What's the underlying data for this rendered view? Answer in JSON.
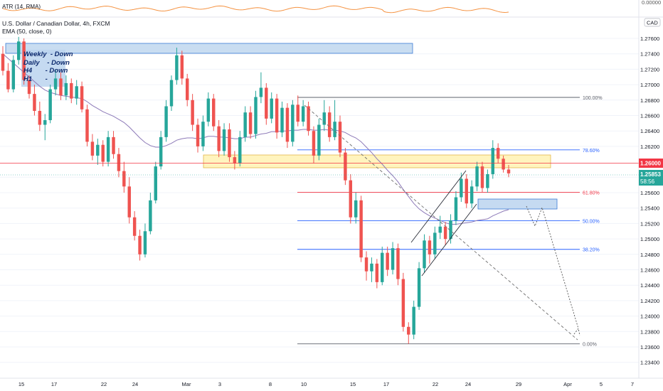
{
  "indicators": {
    "atr_label": "ATR (14, RMA)",
    "atr_value": "0.00000",
    "ema_label": "EMA (50, close, 0)"
  },
  "chart_data": {
    "type": "candlestick",
    "title": "U.S. Dollar / Canadian Dollar, 4h, FXCM",
    "currency": "CAD",
    "y_ticks": [
      1.276,
      1.274,
      1.272,
      1.27,
      1.268,
      1.266,
      1.264,
      1.262,
      1.258,
      1.256,
      1.254,
      1.252,
      1.25,
      1.248,
      1.246,
      1.244,
      1.242,
      1.24,
      1.238,
      1.236,
      1.234
    ],
    "ylim": [
      1.233,
      1.277
    ],
    "x_ticks": [
      "15",
      "17",
      "22",
      "24",
      "Mar",
      "3",
      "8",
      "10",
      "15",
      "17",
      "22",
      "24",
      "29",
      "Apr",
      "5",
      "7"
    ],
    "price_label": "1.26000",
    "last_price": "1.25853",
    "countdown": "58:56",
    "price_line_colors": {
      "up": "#26a69a",
      "down": "#ef5350",
      "ema": "#8d7ab8",
      "atr": "#f59342"
    },
    "fibonacci": [
      {
        "level": "100.00%",
        "price": 1.26835,
        "color": "#5d606b"
      },
      {
        "level": "78.60%",
        "price": 1.26155,
        "color": "#2962ff"
      },
      {
        "level": "61.80%",
        "price": 1.25605,
        "color": "#f23645"
      },
      {
        "level": "50.00%",
        "price": 1.25235,
        "color": "#2962ff"
      },
      {
        "level": "38.20%",
        "price": 1.24865,
        "color": "#2962ff"
      },
      {
        "level": "0.00%",
        "price": 1.2364,
        "color": "#5d606b"
      }
    ],
    "annotations": {
      "bias": [
        "Weekly  - Down",
        "Daily    - Down",
        "H4       - Down",
        "H1       -"
      ]
    },
    "candles": [
      [
        1.274,
        1.275,
        1.2712,
        1.2718
      ],
      [
        1.2718,
        1.2728,
        1.269,
        1.2694
      ],
      [
        1.2694,
        1.2738,
        1.269,
        1.2732
      ],
      [
        1.2732,
        1.2762,
        1.2726,
        1.2756
      ],
      [
        1.2756,
        1.276,
        1.27,
        1.2706
      ],
      [
        1.2706,
        1.2712,
        1.2682,
        1.2688
      ],
      [
        1.2688,
        1.27,
        1.266,
        1.2666
      ],
      [
        1.2666,
        1.2678,
        1.264,
        1.2648
      ],
      [
        1.2648,
        1.2662,
        1.2628,
        1.2654
      ],
      [
        1.2654,
        1.27,
        1.265,
        1.2694
      ],
      [
        1.2694,
        1.272,
        1.2686,
        1.2708
      ],
      [
        1.2708,
        1.2716,
        1.268,
        1.2686
      ],
      [
        1.2686,
        1.2712,
        1.268,
        1.2702
      ],
      [
        1.2702,
        1.2708,
        1.2676,
        1.2682
      ],
      [
        1.2682,
        1.2706,
        1.2674,
        1.2698
      ],
      [
        1.2698,
        1.2704,
        1.2664,
        1.2668
      ],
      [
        1.2668,
        1.2674,
        1.262,
        1.2626
      ],
      [
        1.2626,
        1.2636,
        1.2602,
        1.2608
      ],
      [
        1.2608,
        1.263,
        1.2596,
        1.2622
      ],
      [
        1.2622,
        1.2628,
        1.2594,
        1.26
      ],
      [
        1.26,
        1.264,
        1.2594,
        1.2632
      ],
      [
        1.2632,
        1.264,
        1.2604,
        1.261
      ],
      [
        1.261,
        1.2618,
        1.258,
        1.2588
      ],
      [
        1.2588,
        1.26,
        1.256,
        1.2568
      ],
      [
        1.2568,
        1.258,
        1.252,
        1.2528
      ],
      [
        1.2528,
        1.2536,
        1.2498,
        1.2504
      ],
      [
        1.2504,
        1.2512,
        1.2472,
        1.248
      ],
      [
        1.248,
        1.252,
        1.2476,
        1.251
      ],
      [
        1.251,
        1.256,
        1.2506,
        1.255
      ],
      [
        1.255,
        1.26,
        1.2546,
        1.2594
      ],
      [
        1.2594,
        1.264,
        1.259,
        1.2632
      ],
      [
        1.2632,
        1.268,
        1.2626,
        1.2672
      ],
      [
        1.2672,
        1.2712,
        1.2666,
        1.2706
      ],
      [
        1.2706,
        1.2748,
        1.27,
        1.2738
      ],
      [
        1.2738,
        1.2744,
        1.27,
        1.2708
      ],
      [
        1.2708,
        1.2714,
        1.2672,
        1.268
      ],
      [
        1.268,
        1.2688,
        1.264,
        1.2648
      ],
      [
        1.2648,
        1.2656,
        1.2612,
        1.262
      ],
      [
        1.262,
        1.266,
        1.2614,
        1.2652
      ],
      [
        1.2652,
        1.269,
        1.2646,
        1.2682
      ],
      [
        1.2682,
        1.2688,
        1.264,
        1.2646
      ],
      [
        1.2646,
        1.2654,
        1.2606,
        1.2614
      ],
      [
        1.2614,
        1.265,
        1.2608,
        1.2642
      ],
      [
        1.2642,
        1.265,
        1.26,
        1.2606
      ],
      [
        1.2606,
        1.2614,
        1.259,
        1.2598
      ],
      [
        1.2598,
        1.264,
        1.2594,
        1.2632
      ],
      [
        1.2632,
        1.2672,
        1.2626,
        1.2664
      ],
      [
        1.2664,
        1.2672,
        1.263,
        1.2636
      ],
      [
        1.2636,
        1.2692,
        1.263,
        1.2684
      ],
      [
        1.2684,
        1.2716,
        1.2676,
        1.2696
      ],
      [
        1.2696,
        1.2702,
        1.2648,
        1.2656
      ],
      [
        1.2656,
        1.269,
        1.265,
        1.2682
      ],
      [
        1.2682,
        1.2688,
        1.263,
        1.2638
      ],
      [
        1.2638,
        1.2678,
        1.2632,
        1.267
      ],
      [
        1.267,
        1.2676,
        1.2618,
        1.2626
      ],
      [
        1.2626,
        1.268,
        1.262,
        1.2674
      ],
      [
        1.2674,
        1.2686,
        1.2646,
        1.2652
      ],
      [
        1.2652,
        1.268,
        1.2646,
        1.2672
      ],
      [
        1.2672,
        1.2678,
        1.2634,
        1.264
      ],
      [
        1.264,
        1.2646,
        1.2598,
        1.2608
      ],
      [
        1.2608,
        1.2656,
        1.2602,
        1.2648
      ],
      [
        1.2648,
        1.268,
        1.264,
        1.2664
      ],
      [
        1.2664,
        1.2672,
        1.2626,
        1.2632
      ],
      [
        1.2632,
        1.268,
        1.2628,
        1.2652
      ],
      [
        1.2652,
        1.266,
        1.2606,
        1.2612
      ],
      [
        1.2612,
        1.2618,
        1.257,
        1.2576
      ],
      [
        1.2576,
        1.2584,
        1.252,
        1.2528
      ],
      [
        1.2528,
        1.256,
        1.252,
        1.255
      ],
      [
        1.255,
        1.2556,
        1.247,
        1.2476
      ],
      [
        1.2476,
        1.2484,
        1.2446,
        1.2458
      ],
      [
        1.2458,
        1.2476,
        1.2444,
        1.2468
      ],
      [
        1.2468,
        1.2474,
        1.2436,
        1.2444
      ],
      [
        1.2444,
        1.249,
        1.244,
        1.2482
      ],
      [
        1.2482,
        1.249,
        1.2452,
        1.246
      ],
      [
        1.246,
        1.2496,
        1.2454,
        1.2488
      ],
      [
        1.2488,
        1.2494,
        1.244,
        1.2448
      ],
      [
        1.2448,
        1.2456,
        1.238,
        1.2386
      ],
      [
        1.2386,
        1.2392,
        1.2364,
        1.2376
      ],
      [
        1.2376,
        1.242,
        1.237,
        1.2412
      ],
      [
        1.2412,
        1.247,
        1.2408,
        1.2462
      ],
      [
        1.2462,
        1.2506,
        1.2456,
        1.2498
      ],
      [
        1.2498,
        1.2504,
        1.2468,
        1.248
      ],
      [
        1.248,
        1.2516,
        1.2474,
        1.2508
      ],
      [
        1.2508,
        1.253,
        1.25,
        1.2516
      ],
      [
        1.2516,
        1.2522,
        1.2492,
        1.25
      ],
      [
        1.25,
        1.2532,
        1.2494,
        1.2524
      ],
      [
        1.2524,
        1.2562,
        1.2518,
        1.2554
      ],
      [
        1.2554,
        1.2586,
        1.2548,
        1.2578
      ],
      [
        1.2578,
        1.2584,
        1.254,
        1.2546
      ],
      [
        1.2546,
        1.2576,
        1.254,
        1.2568
      ],
      [
        1.2568,
        1.26,
        1.2562,
        1.2594
      ],
      [
        1.2594,
        1.26,
        1.256,
        1.2566
      ],
      [
        1.2566,
        1.259,
        1.256,
        1.2584
      ],
      [
        1.2584,
        1.2628,
        1.2578,
        1.2618
      ],
      [
        1.2618,
        1.2624,
        1.2598,
        1.2604
      ],
      [
        1.2604,
        1.2608,
        1.2586,
        1.259
      ],
      [
        1.259,
        1.2596,
        1.258,
        1.2585
      ]
    ],
    "ema": [
      1.274,
      1.2734,
      1.2728,
      1.2722,
      1.2716,
      1.271,
      1.2704,
      1.2698,
      1.2693,
      1.269,
      1.2688,
      1.2686,
      1.2685,
      1.2684,
      1.2683,
      1.2682,
      1.2678,
      1.2673,
      1.2669,
      1.2665,
      1.2662,
      1.2659,
      1.2655,
      1.2651,
      1.2645,
      1.2638,
      1.2631,
      1.2625,
      1.2621,
      1.2619,
      1.2619,
      1.2621,
      1.2624,
      1.2628,
      1.263,
      1.2631,
      1.2631,
      1.263,
      1.2631,
      1.2633,
      1.2633,
      1.2632,
      1.2632,
      1.2631,
      1.263,
      1.263,
      1.2632,
      1.2632,
      1.2634,
      1.2636,
      1.2637,
      1.2639,
      1.2639,
      1.264,
      1.264,
      1.2641,
      1.2641,
      1.2642,
      1.2642,
      1.2641,
      1.2641,
      1.2642,
      1.2641,
      1.2641,
      1.264,
      1.2638,
      1.2634,
      1.2631,
      1.2626,
      1.2619,
      1.2612,
      1.2604,
      1.2597,
      1.2589,
      1.2582,
      1.2574,
      1.2564,
      1.2555,
      1.2546,
      1.2539,
      1.2534,
      1.253,
      1.2527,
      1.2524,
      1.2521,
      1.2519,
      1.2519,
      1.252,
      1.2521,
      1.2522,
      1.2524,
      1.2525,
      1.2526,
      1.253,
      1.2533,
      1.2536,
      1.2538
    ]
  }
}
